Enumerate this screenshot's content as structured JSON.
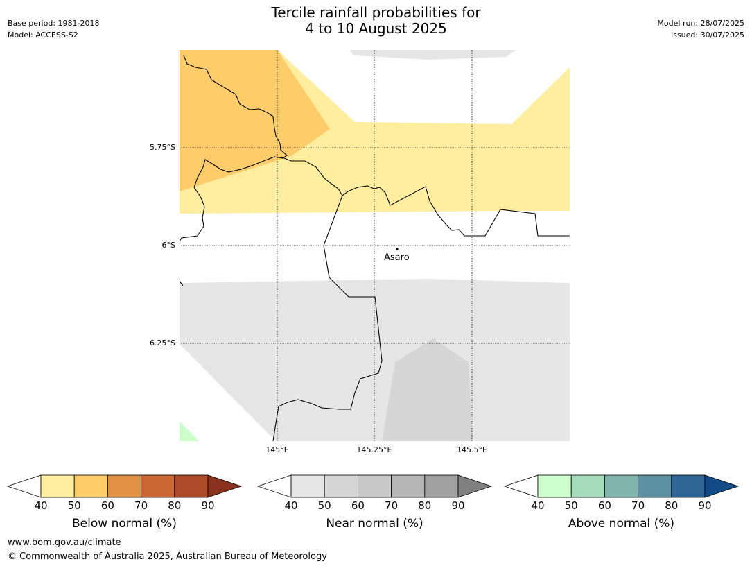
{
  "title": {
    "line1": "Tercile rainfall probabilities for",
    "line2": "4 to 10 August 2025"
  },
  "meta_left": {
    "base_period": "Base period: 1981-2018",
    "model": "Model: ACCESS-S2"
  },
  "meta_right": {
    "model_run": "Model run: 28/07/2025",
    "issued": "Issued: 30/07/2025"
  },
  "map": {
    "lat_labels": [
      "5.75°S",
      "6°S",
      "6.25°S"
    ],
    "lon_labels": [
      "145°E",
      "145.25°E",
      "145.5°E"
    ],
    "place": "Asaro",
    "colors": {
      "below_40_50": "#ffeda0",
      "below_50_60": "#fecc6a",
      "near_40_50": "#e6e6e6",
      "near_50_60": "#d6d6d6",
      "above_40_50": "#ccffcc",
      "border": "#000000"
    }
  },
  "colorbars": [
    {
      "label": "Below normal (%)",
      "ticks": [
        "40",
        "50",
        "60",
        "70",
        "80",
        "90"
      ],
      "colors": [
        "#ffeda0",
        "#fecc6a",
        "#e09144",
        "#cc6633",
        "#ad4a28",
        "#8a3220"
      ]
    },
    {
      "label": "Near normal (%)",
      "ticks": [
        "40",
        "50",
        "60",
        "70",
        "80",
        "90"
      ],
      "colors": [
        "#e6e6e6",
        "#d6d6d6",
        "#c8c8c8",
        "#b5b5b5",
        "#a0a0a0",
        "#808080"
      ]
    },
    {
      "label": "Above normal (%)",
      "ticks": [
        "40",
        "50",
        "60",
        "70",
        "80",
        "90"
      ],
      "colors": [
        "#ccffcc",
        "#a5dabb",
        "#7fb4ae",
        "#5b91a1",
        "#2f6698",
        "#124b86"
      ]
    }
  ],
  "footer": {
    "url": "www.bom.gov.au/climate",
    "copyright": "© Commonwealth of Australia 2025, Australian Bureau of Meteorology"
  }
}
